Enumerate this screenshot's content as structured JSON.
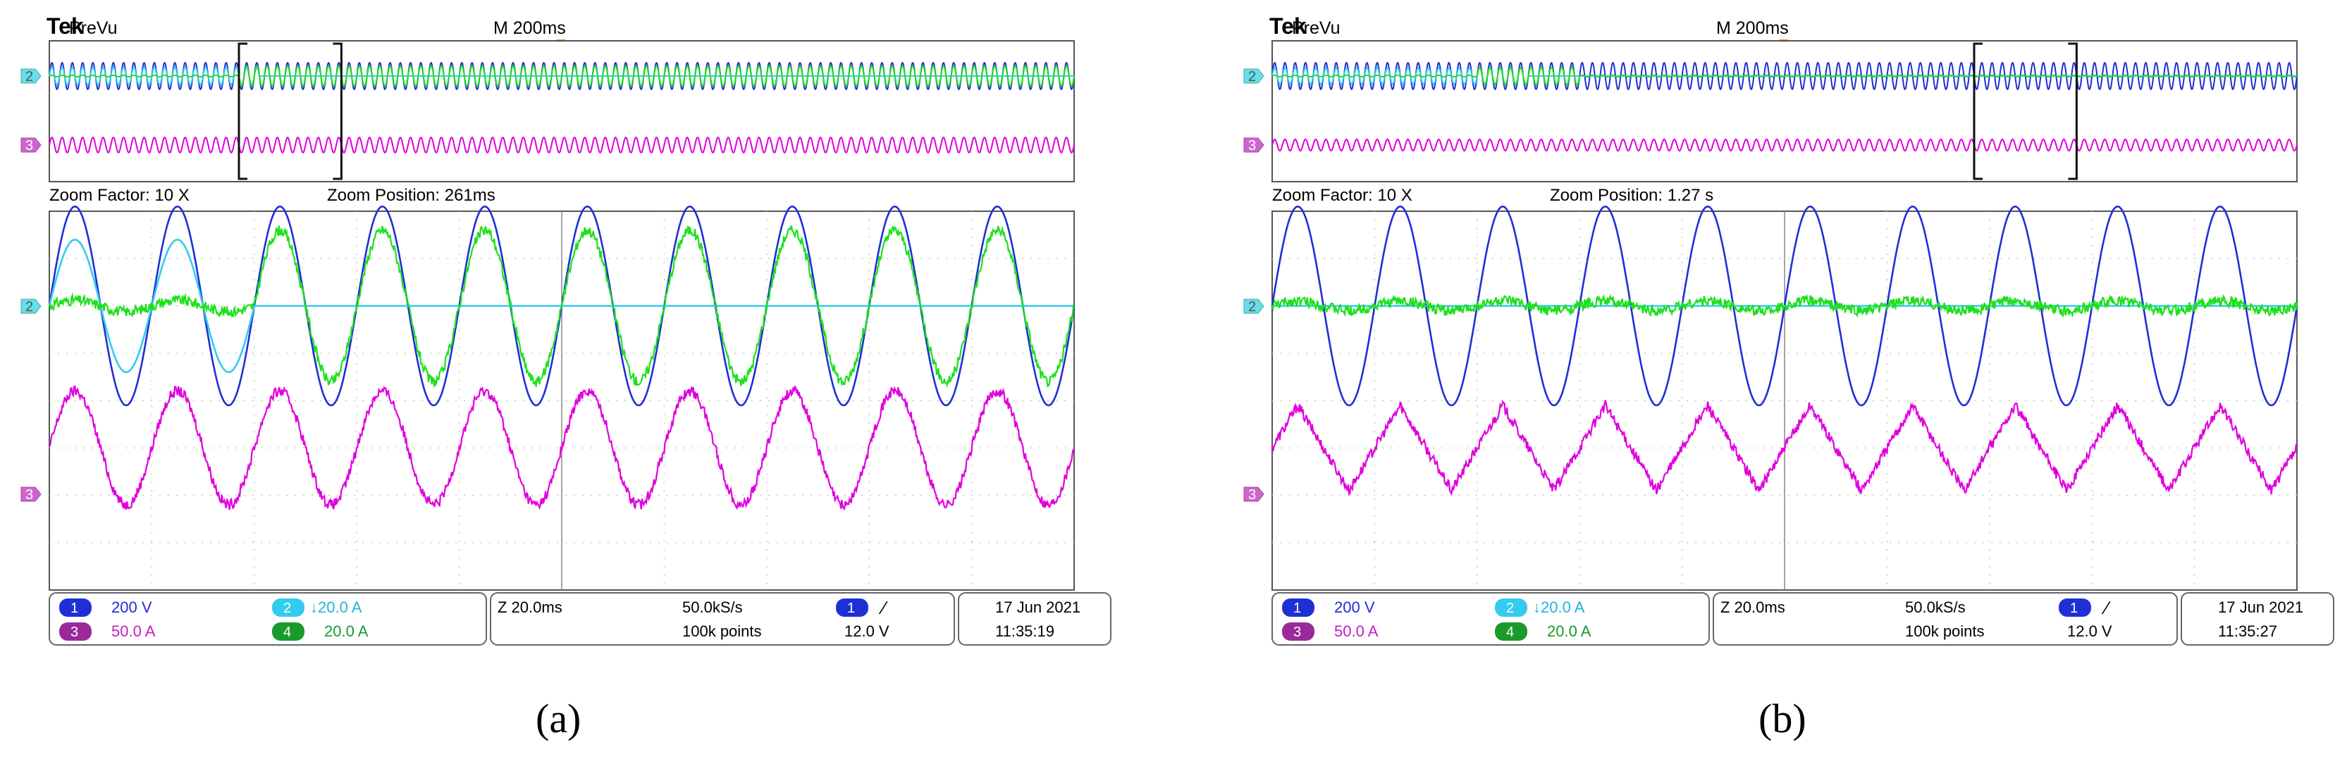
{
  "panels": [
    {
      "caption": "(a)",
      "brand": "Tek",
      "mode": "PreVu",
      "timebase": "M 200ms",
      "zoom_factor": "Zoom Factor: 10 X",
      "zoom_position": "Zoom Position: 261ms",
      "overview_window_fraction": [
        0.185,
        0.285
      ],
      "ch_markers": {
        "upper": "2",
        "lower": "3"
      },
      "status": {
        "ch1_num": "1",
        "ch1_scale": "200 V",
        "ch2_num": "2",
        "ch2_scale": "↓20.0 A",
        "ch3_num": "3",
        "ch3_scale": "50.0 A",
        "ch4_num": "4",
        "ch4_scale": "20.0 A",
        "zoom_scale": "Z 20.0ms",
        "sample_rate": "50.0kS/s",
        "record_length": "100k points",
        "trig_ch": "1",
        "trig_slope": "∕",
        "trig_level": "12.0 V",
        "date": "17 Jun  2021",
        "time": "11:35:19"
      }
    },
    {
      "caption": "(b)",
      "brand": "Tek",
      "mode": "PreVu",
      "timebase": "M 200ms",
      "zoom_factor": "Zoom Factor: 10 X",
      "zoom_position": "Zoom Position: 1.27 s",
      "overview_window_fraction": [
        0.685,
        0.785
      ],
      "ch_markers": {
        "upper": "2",
        "lower": "3"
      },
      "status": {
        "ch1_num": "1",
        "ch1_scale": "200 V",
        "ch2_num": "2",
        "ch2_scale": "↓20.0 A",
        "ch3_num": "3",
        "ch3_scale": "50.0 A",
        "ch4_num": "4",
        "ch4_scale": "20.0 A",
        "zoom_scale": "Z 20.0ms",
        "sample_rate": "50.0kS/s",
        "record_length": "100k points",
        "trig_ch": "1",
        "trig_slope": "∕",
        "trig_level": "12.0 V",
        "date": "17 Jun  2021",
        "time": "11:35:27"
      }
    }
  ],
  "chart_data": [
    {
      "type": "line",
      "title": "",
      "time_window_ms": 200,
      "x_divisions": 10,
      "grid": true,
      "series": [
        {
          "channel": 1,
          "color": "#1f2fd6",
          "cycles": 10,
          "amplitude_div": 2.1,
          "offset_div": 0,
          "description_points": [
            [
              0,
              0
            ],
            [
              200,
              0
            ]
          ]
        },
        {
          "channel": 2,
          "color": "#33ccee",
          "cycles": 10,
          "amplitude_div": 1.4,
          "offset_div": 0,
          "active_until_ms": 40
        },
        {
          "channel": 4,
          "color": "#1ee01e",
          "cycles": 10,
          "amplitude_div": 1.6,
          "offset_div": 0,
          "active_from_ms": 40,
          "noise": true
        },
        {
          "channel": 3,
          "color": "#e000dd",
          "cycles": 10,
          "amplitude_div": 1.2,
          "offset_div": 0,
          "noise": true
        }
      ]
    },
    {
      "type": "line",
      "title": "",
      "time_window_ms": 200,
      "x_divisions": 10,
      "grid": true,
      "series": [
        {
          "channel": 1,
          "color": "#1f2fd6",
          "cycles": 10,
          "amplitude_div": 2.1,
          "offset_div": 0
        },
        {
          "channel": 2,
          "color": "#33ccee",
          "cycles": 10,
          "amplitude_div": 0,
          "offset_div": 0
        },
        {
          "channel": 4,
          "color": "#1ee01e",
          "cycles": 10,
          "amplitude_div": 0.1,
          "offset_div": 0,
          "noise": true
        },
        {
          "channel": 3,
          "color": "#e000dd",
          "cycles": 10,
          "amplitude_div": 0.9,
          "offset_div": 0,
          "noise": true,
          "triangular": true
        }
      ]
    }
  ]
}
